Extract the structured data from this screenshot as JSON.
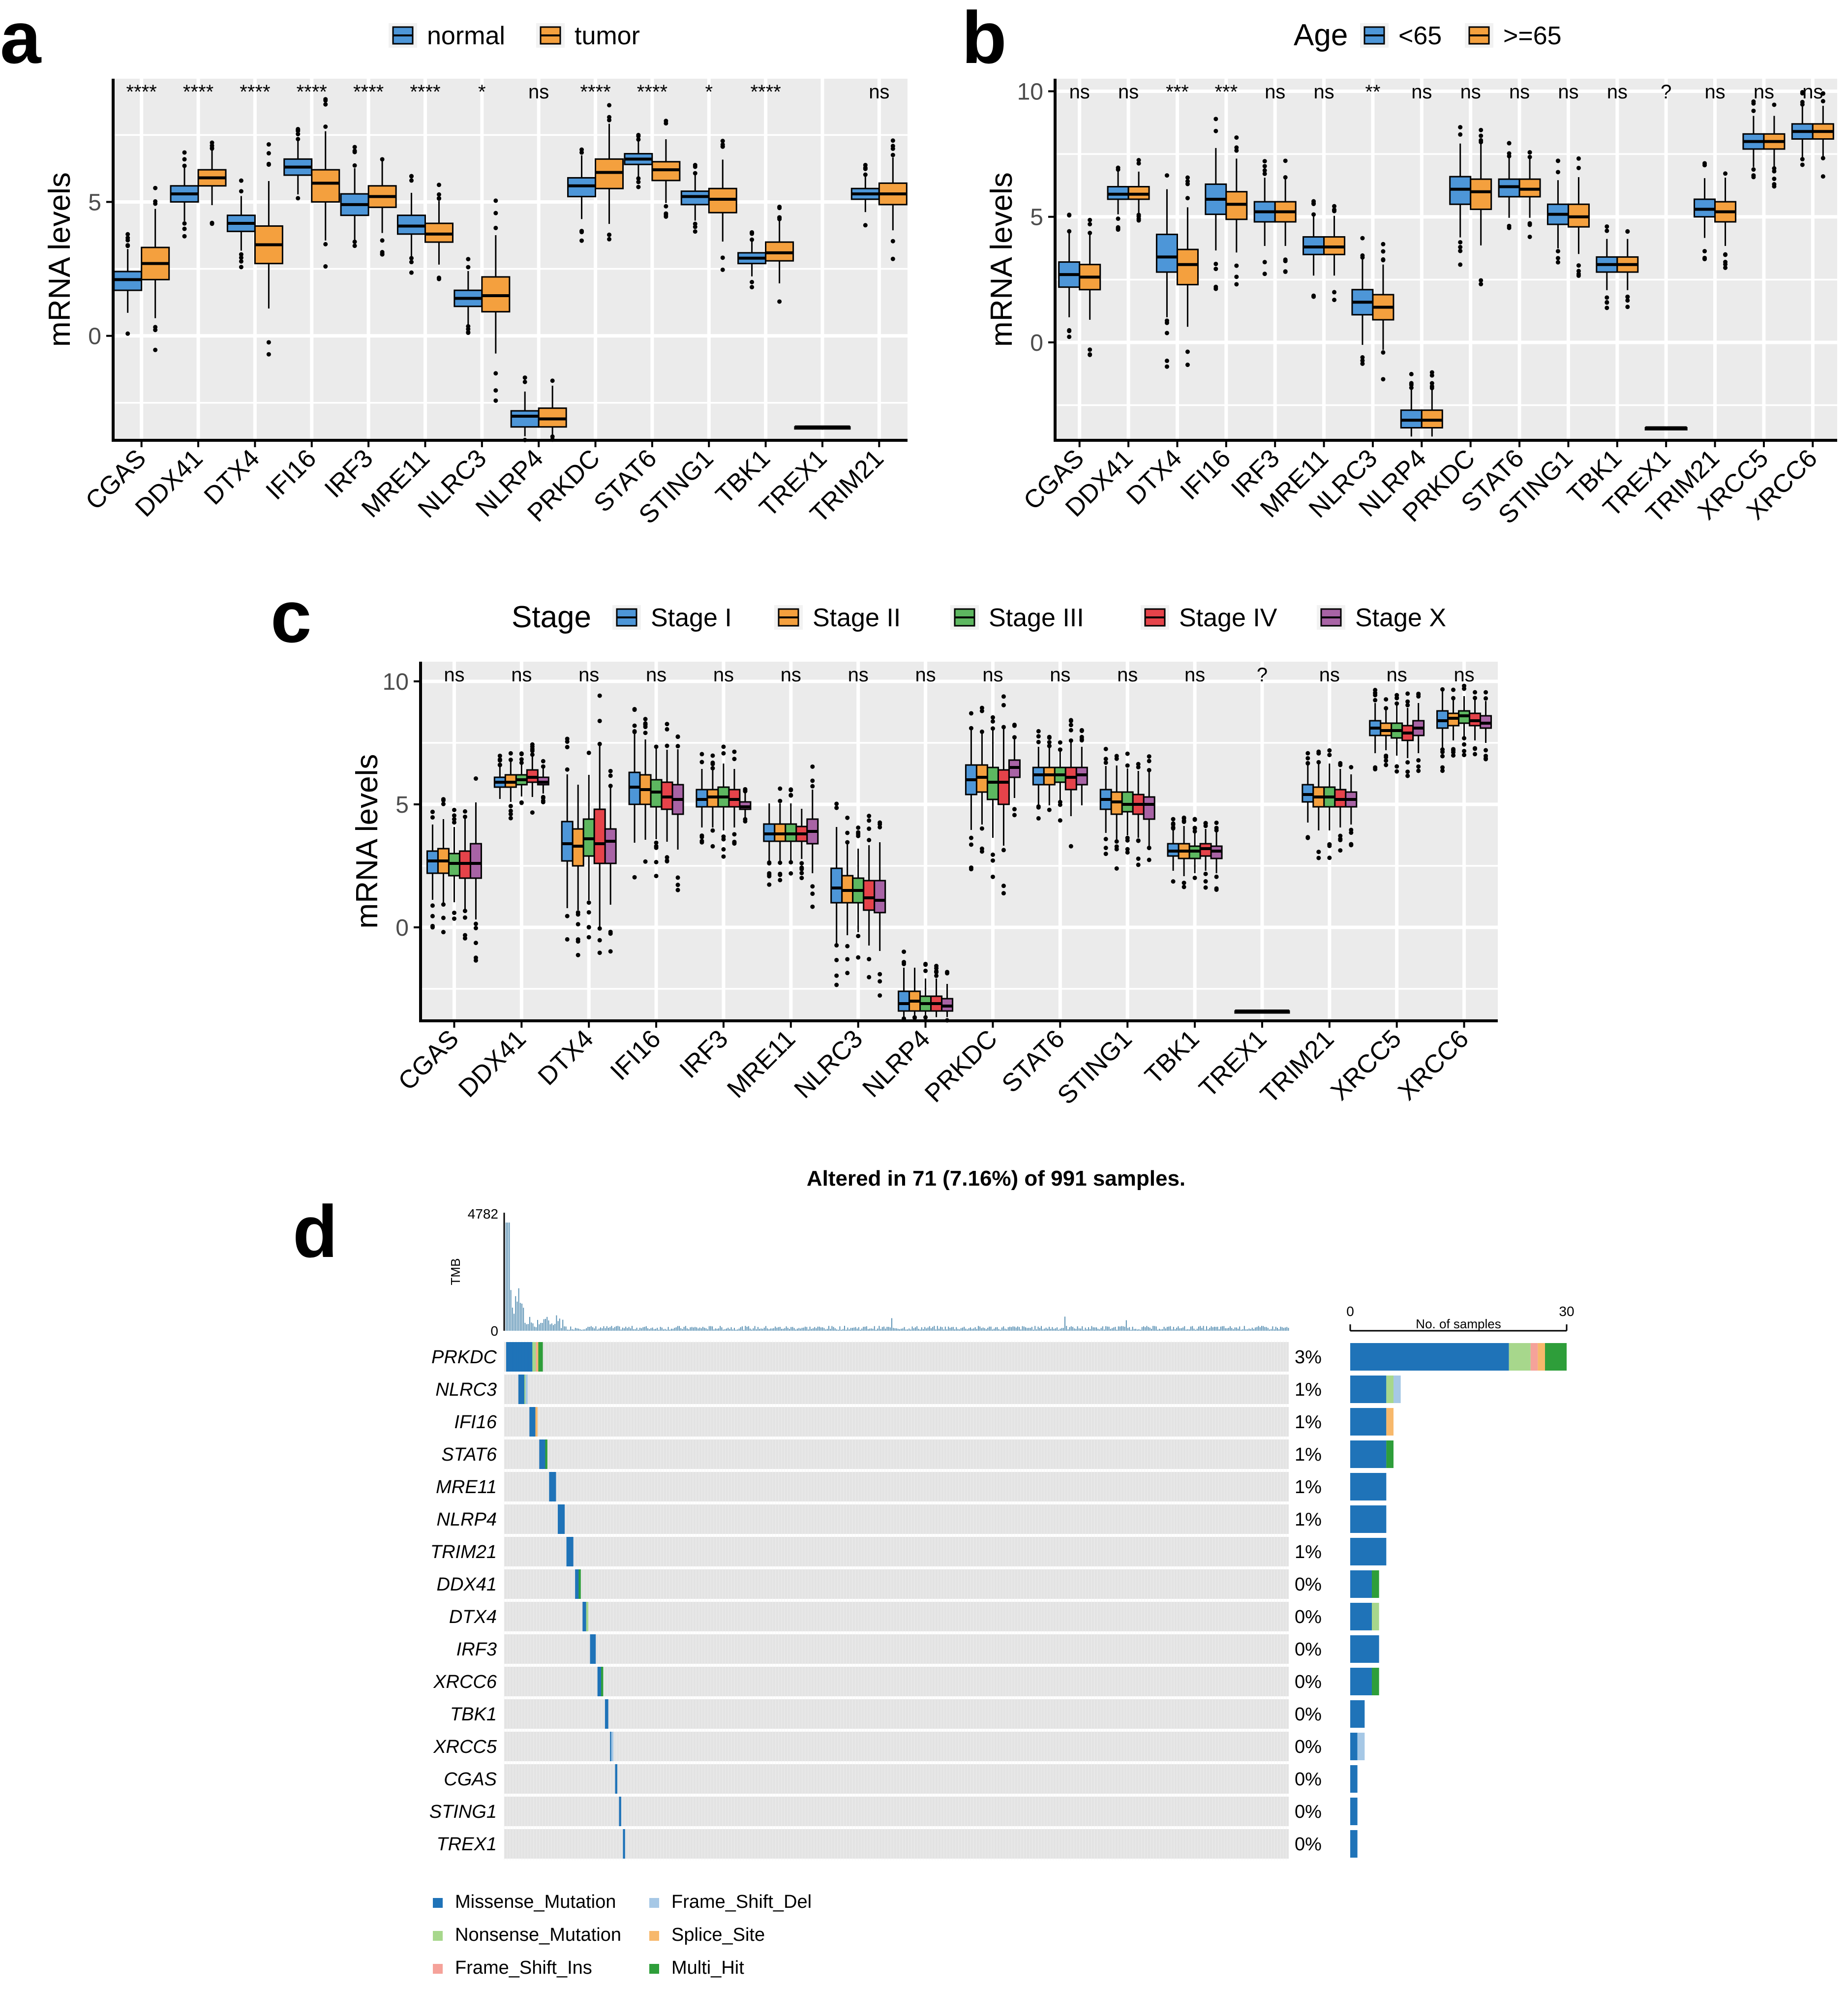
{
  "colors": {
    "normal": "#4D96D8",
    "tumor": "#F4A03E",
    "stage1": "#4D96D8",
    "stage2": "#F4A03E",
    "stage3": "#5DB760",
    "stage4": "#E5434A",
    "stageX": "#A863A5",
    "panel_bg": "#EBEBEB",
    "grid": "#FFFFFF",
    "missense": "#1F73B8",
    "nonsense": "#A7D78C",
    "fs_ins": "#F5A29A",
    "fs_del": "#A6C8E6",
    "splice": "#F7B86B",
    "multi": "#2E9E3A",
    "tmb_bar": "#5D93B5",
    "oncoprint_bg": "#E3E3E3"
  },
  "chart_data": [
    {
      "panel": "a",
      "type": "boxplot",
      "ylabel": "mRNA levels",
      "ylim": [
        -3.9,
        9.6
      ],
      "yticks": [
        0,
        5
      ],
      "legend": {
        "title": "",
        "entries": [
          "normal",
          "tumor"
        ]
      },
      "categories": [
        "CGAS",
        "DDX41",
        "DTX4",
        "IFI16",
        "IRF3",
        "MRE11",
        "NLRC3",
        "NLRP4",
        "PRKDC",
        "STAT6",
        "STING1",
        "TBK1",
        "TREX1",
        "TRIM21"
      ],
      "significance": [
        "****",
        "****",
        "****",
        "****",
        "****",
        "****",
        "*",
        "ns",
        "****",
        "****",
        "*",
        "****",
        "",
        "ns"
      ],
      "series": [
        {
          "name": "normal",
          "boxes": [
            [
              1.7,
              2.1,
              2.4
            ],
            [
              5.0,
              5.3,
              5.6
            ],
            [
              3.9,
              4.2,
              4.5
            ],
            [
              6.0,
              6.3,
              6.6
            ],
            [
              4.5,
              4.9,
              5.3
            ],
            [
              3.8,
              4.1,
              4.5
            ],
            [
              1.1,
              1.4,
              1.7
            ],
            [
              -3.4,
              -3.0,
              -2.8
            ],
            [
              5.2,
              5.6,
              5.9
            ],
            [
              6.4,
              6.6,
              6.8
            ],
            [
              4.9,
              5.2,
              5.4
            ],
            [
              2.7,
              2.9,
              3.1
            ],
            [
              -3.4,
              -3.4,
              -3.4
            ],
            [
              5.1,
              5.3,
              5.5
            ]
          ]
        },
        {
          "name": "tumor",
          "boxes": [
            [
              2.1,
              2.7,
              3.3
            ],
            [
              5.6,
              5.9,
              6.2
            ],
            [
              2.7,
              3.4,
              4.1
            ],
            [
              5.0,
              5.7,
              6.2
            ],
            [
              4.8,
              5.2,
              5.6
            ],
            [
              3.5,
              3.8,
              4.2
            ],
            [
              0.9,
              1.5,
              2.2
            ],
            [
              -3.4,
              -3.1,
              -2.7
            ],
            [
              5.5,
              6.1,
              6.6
            ],
            [
              5.8,
              6.2,
              6.5
            ],
            [
              4.6,
              5.1,
              5.5
            ],
            [
              2.8,
              3.1,
              3.5
            ],
            [
              -3.4,
              -3.4,
              -3.4
            ],
            [
              4.9,
              5.3,
              5.7
            ]
          ]
        }
      ]
    },
    {
      "panel": "b",
      "type": "boxplot",
      "ylabel": "mRNA levels",
      "ylim": [
        -3.9,
        10.5
      ],
      "yticks": [
        0,
        5,
        10
      ],
      "legend": {
        "title": "Age",
        "entries": [
          "<65",
          ">=65"
        ]
      },
      "categories": [
        "CGAS",
        "DDX41",
        "DTX4",
        "IFI16",
        "IRF3",
        "MRE11",
        "NLRC3",
        "NLRP4",
        "PRKDC",
        "STAT6",
        "STING1",
        "TBK1",
        "TREX1",
        "TRIM21",
        "XRCC5",
        "XRCC6"
      ],
      "significance": [
        "ns",
        "ns",
        "***",
        "***",
        "ns",
        "ns",
        "**",
        "ns",
        "ns",
        "ns",
        "ns",
        "ns",
        "?",
        "ns",
        "ns",
        "ns"
      ],
      "series": [
        {
          "name": "<65",
          "boxes": [
            [
              2.2,
              2.7,
              3.2
            ],
            [
              5.7,
              5.9,
              6.2
            ],
            [
              2.8,
              3.4,
              4.3
            ],
            [
              5.1,
              5.7,
              6.3
            ],
            [
              4.8,
              5.2,
              5.6
            ],
            [
              3.5,
              3.8,
              4.2
            ],
            [
              1.1,
              1.6,
              2.1
            ],
            [
              -3.4,
              -3.1,
              -2.7
            ],
            [
              5.5,
              6.1,
              6.6
            ],
            [
              5.8,
              6.2,
              6.5
            ],
            [
              4.7,
              5.1,
              5.5
            ],
            [
              2.8,
              3.1,
              3.4
            ],
            [
              -3.4,
              -3.4,
              -3.4
            ],
            [
              5.0,
              5.3,
              5.7
            ],
            [
              7.7,
              8.0,
              8.3
            ],
            [
              8.1,
              8.4,
              8.7
            ]
          ]
        },
        {
          "name": ">=65",
          "boxes": [
            [
              2.1,
              2.6,
              3.1
            ],
            [
              5.7,
              5.9,
              6.2
            ],
            [
              2.3,
              3.1,
              3.7
            ],
            [
              4.9,
              5.5,
              6.0
            ],
            [
              4.8,
              5.2,
              5.6
            ],
            [
              3.5,
              3.8,
              4.2
            ],
            [
              0.9,
              1.4,
              1.9
            ],
            [
              -3.4,
              -3.1,
              -2.7
            ],
            [
              5.3,
              6.0,
              6.5
            ],
            [
              5.8,
              6.1,
              6.5
            ],
            [
              4.6,
              5.0,
              5.5
            ],
            [
              2.8,
              3.1,
              3.4
            ],
            [
              -3.4,
              -3.4,
              -3.4
            ],
            [
              4.8,
              5.2,
              5.6
            ],
            [
              7.7,
              8.0,
              8.3
            ],
            [
              8.1,
              8.4,
              8.7
            ]
          ]
        }
      ]
    },
    {
      "panel": "c",
      "type": "boxplot",
      "ylabel": "mRNA levels",
      "ylim": [
        -3.8,
        10.8
      ],
      "yticks": [
        0,
        5,
        10
      ],
      "legend": {
        "title": "Stage",
        "entries": [
          "Stage I",
          "Stage II",
          "Stage III",
          "Stage IV",
          "Stage X"
        ]
      },
      "categories": [
        "CGAS",
        "DDX41",
        "DTX4",
        "IFI16",
        "IRF3",
        "MRE11",
        "NLRC3",
        "NLRP4",
        "PRKDC",
        "STAT6",
        "STING1",
        "TBK1",
        "TREX1",
        "TRIM21",
        "XRCC5",
        "XRCC6"
      ],
      "significance": [
        "ns",
        "ns",
        "ns",
        "ns",
        "ns",
        "ns",
        "ns",
        "ns",
        "ns",
        "ns",
        "ns",
        "ns",
        "?",
        "ns",
        "ns",
        "ns"
      ],
      "series": [
        {
          "name": "Stage I",
          "boxes": [
            [
              2.2,
              2.7,
              3.1
            ],
            [
              5.7,
              5.9,
              6.1
            ],
            [
              2.7,
              3.4,
              4.3
            ],
            [
              5.0,
              5.7,
              6.3
            ],
            [
              4.9,
              5.2,
              5.6
            ],
            [
              3.5,
              3.8,
              4.2
            ],
            [
              1.0,
              1.6,
              2.4
            ],
            [
              -3.4,
              -3.1,
              -2.6
            ],
            [
              5.4,
              6.0,
              6.6
            ],
            [
              5.8,
              6.2,
              6.5
            ],
            [
              4.8,
              5.2,
              5.6
            ],
            [
              2.9,
              3.1,
              3.4
            ],
            [
              -3.4,
              -3.4,
              -3.4
            ],
            [
              5.1,
              5.4,
              5.8
            ],
            [
              7.8,
              8.1,
              8.4
            ],
            [
              8.1,
              8.4,
              8.8
            ]
          ]
        },
        {
          "name": "Stage II",
          "boxes": [
            [
              2.2,
              2.7,
              3.2
            ],
            [
              5.7,
              5.9,
              6.2
            ],
            [
              2.5,
              3.3,
              4.0
            ],
            [
              5.0,
              5.6,
              6.2
            ],
            [
              4.9,
              5.3,
              5.6
            ],
            [
              3.5,
              3.8,
              4.2
            ],
            [
              1.0,
              1.5,
              2.1
            ],
            [
              -3.4,
              -3.0,
              -2.6
            ],
            [
              5.5,
              6.1,
              6.6
            ],
            [
              5.8,
              6.2,
              6.5
            ],
            [
              4.6,
              5.1,
              5.5
            ],
            [
              2.8,
              3.1,
              3.4
            ],
            [
              -3.4,
              -3.4,
              -3.4
            ],
            [
              4.9,
              5.3,
              5.7
            ],
            [
              7.8,
              8.0,
              8.3
            ],
            [
              8.2,
              8.5,
              8.7
            ]
          ]
        },
        {
          "name": "Stage III",
          "boxes": [
            [
              2.1,
              2.6,
              3.0
            ],
            [
              5.8,
              6.0,
              6.2
            ],
            [
              2.9,
              3.6,
              4.4
            ],
            [
              4.9,
              5.5,
              6.0
            ],
            [
              4.9,
              5.3,
              5.7
            ],
            [
              3.5,
              3.8,
              4.2
            ],
            [
              1.0,
              1.5,
              2.0
            ],
            [
              -3.4,
              -3.1,
              -2.8
            ],
            [
              5.2,
              5.9,
              6.5
            ],
            [
              5.9,
              6.2,
              6.5
            ],
            [
              4.7,
              5.0,
              5.5
            ],
            [
              2.8,
              3.1,
              3.3
            ],
            [
              -3.4,
              -3.4,
              -3.4
            ],
            [
              4.9,
              5.3,
              5.7
            ],
            [
              7.7,
              8.0,
              8.3
            ],
            [
              8.3,
              8.6,
              8.8
            ]
          ]
        },
        {
          "name": "Stage IV",
          "boxes": [
            [
              2.0,
              2.6,
              3.1
            ],
            [
              5.9,
              6.1,
              6.4
            ],
            [
              2.6,
              3.4,
              4.8
            ],
            [
              4.8,
              5.3,
              5.9
            ],
            [
              4.9,
              5.2,
              5.6
            ],
            [
              3.5,
              3.8,
              4.1
            ],
            [
              0.7,
              1.2,
              1.9
            ],
            [
              -3.4,
              -3.1,
              -2.8
            ],
            [
              5.0,
              5.9,
              6.4
            ],
            [
              5.6,
              6.1,
              6.5
            ],
            [
              4.6,
              5.0,
              5.4
            ],
            [
              2.9,
              3.2,
              3.4
            ],
            [
              -3.4,
              -3.4,
              -3.4
            ],
            [
              4.9,
              5.2,
              5.6
            ],
            [
              7.6,
              7.9,
              8.2
            ],
            [
              8.2,
              8.4,
              8.7
            ]
          ]
        },
        {
          "name": "Stage X",
          "boxes": [
            [
              2.0,
              2.6,
              3.4
            ],
            [
              5.8,
              5.9,
              6.1
            ],
            [
              2.6,
              3.5,
              4.0
            ],
            [
              4.6,
              5.2,
              5.8
            ],
            [
              4.8,
              4.9,
              5.1
            ],
            [
              3.4,
              3.9,
              4.4
            ],
            [
              0.6,
              1.1,
              1.9
            ],
            [
              -3.4,
              -3.2,
              -2.9
            ],
            [
              6.1,
              6.5,
              6.8
            ],
            [
              5.8,
              6.2,
              6.5
            ],
            [
              4.4,
              5.0,
              5.3
            ],
            [
              2.8,
              3.1,
              3.3
            ],
            [
              -3.4,
              -3.4,
              -3.4
            ],
            [
              4.9,
              5.2,
              5.5
            ],
            [
              7.8,
              8.1,
              8.4
            ],
            [
              8.1,
              8.3,
              8.6
            ]
          ]
        }
      ]
    },
    {
      "panel": "d",
      "type": "oncoplot",
      "title": "Altered in 71 (7.16%) of 991 samples.",
      "tmb_label": "TMB",
      "tmb_ticks": [
        "4782",
        "0"
      ],
      "genes": [
        "PRKDC",
        "NLRC3",
        "IFI16",
        "STAT6",
        "MRE11",
        "NLRP4",
        "TRIM21",
        "DDX41",
        "DTX4",
        "IRF3",
        "XRCC6",
        "TBK1",
        "XRCC5",
        "CGAS",
        "STING1",
        "TREX1"
      ],
      "percent": [
        "3%",
        "1%",
        "1%",
        "1%",
        "1%",
        "1%",
        "1%",
        "0%",
        "0%",
        "0%",
        "0%",
        "0%",
        "0%",
        "0%",
        "0%",
        "0%"
      ],
      "bar_axis": {
        "label": "No. of samples",
        "ticks": [
          "0",
          "30"
        ],
        "max": 30
      },
      "bar_counts": [
        {
          "Missense_Mutation": 22,
          "Nonsense_Mutation": 3,
          "Frame_Shift_Ins": 1,
          "Splice_Site": 1,
          "Multi_Hit": 3
        },
        {
          "Missense_Mutation": 5,
          "Nonsense_Mutation": 1,
          "Frame_Shift_Del": 1
        },
        {
          "Missense_Mutation": 5,
          "Splice_Site": 1
        },
        {
          "Missense_Mutation": 5,
          "Multi_Hit": 1
        },
        {
          "Missense_Mutation": 5
        },
        {
          "Missense_Mutation": 5
        },
        {
          "Missense_Mutation": 5
        },
        {
          "Missense_Mutation": 3,
          "Multi_Hit": 1
        },
        {
          "Missense_Mutation": 3,
          "Nonsense_Mutation": 1
        },
        {
          "Missense_Mutation": 4
        },
        {
          "Missense_Mutation": 3,
          "Multi_Hit": 1
        },
        {
          "Missense_Mutation": 2
        },
        {
          "Missense_Mutation": 1,
          "Frame_Shift_Del": 1
        },
        {
          "Missense_Mutation": 1
        },
        {
          "Missense_Mutation": 1
        },
        {
          "Missense_Mutation": 1
        }
      ],
      "legend": [
        "Missense_Mutation",
        "Frame_Shift_Del",
        "Nonsense_Mutation",
        "Splice_Site",
        "Frame_Shift_Ins",
        "Multi_Hit"
      ]
    }
  ],
  "panel_labels": {
    "a": "a",
    "b": "b",
    "c": "c",
    "d": "d"
  }
}
